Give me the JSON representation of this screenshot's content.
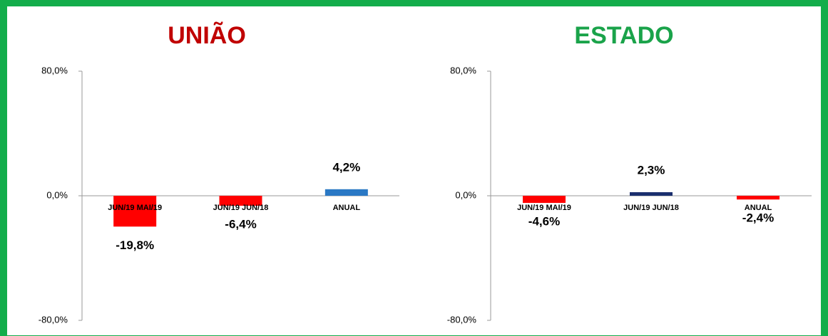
{
  "chart_data": [
    {
      "type": "bar",
      "title": "UNIÃO",
      "title_color": "#c00000",
      "categories": [
        "JUN/19 MAI/19",
        "JUN/19 JUN/18",
        "ANUAL"
      ],
      "values": [
        -19.8,
        -6.4,
        4.2
      ],
      "value_labels": [
        "-19,8%",
        "-6,4%",
        "4,2%"
      ],
      "colors": [
        "#ff0000",
        "#ff0000",
        "#2a78c4"
      ],
      "ylim": [
        -80,
        80
      ],
      "yticks": [
        {
          "value": -80,
          "label": "-80,0%"
        },
        {
          "value": 0,
          "label": "0,0%"
        },
        {
          "value": 80,
          "label": "80,0%"
        }
      ]
    },
    {
      "type": "bar",
      "title": "ESTADO",
      "title_color": "#1aa34a",
      "categories": [
        "JUN/19 MAI/19",
        "JUN/19 JUN/18",
        "ANUAL"
      ],
      "values": [
        -4.6,
        2.3,
        -2.4
      ],
      "value_labels": [
        "-4,6%",
        "2,3%",
        "-2,4%"
      ],
      "colors": [
        "#ff0000",
        "#1b2f6e",
        "#ff0000"
      ],
      "ylim": [
        -80,
        80
      ],
      "yticks": [
        {
          "value": -80,
          "label": "-80,0%"
        },
        {
          "value": 0,
          "label": "0,0%"
        },
        {
          "value": 80,
          "label": "80,0%"
        }
      ]
    }
  ]
}
